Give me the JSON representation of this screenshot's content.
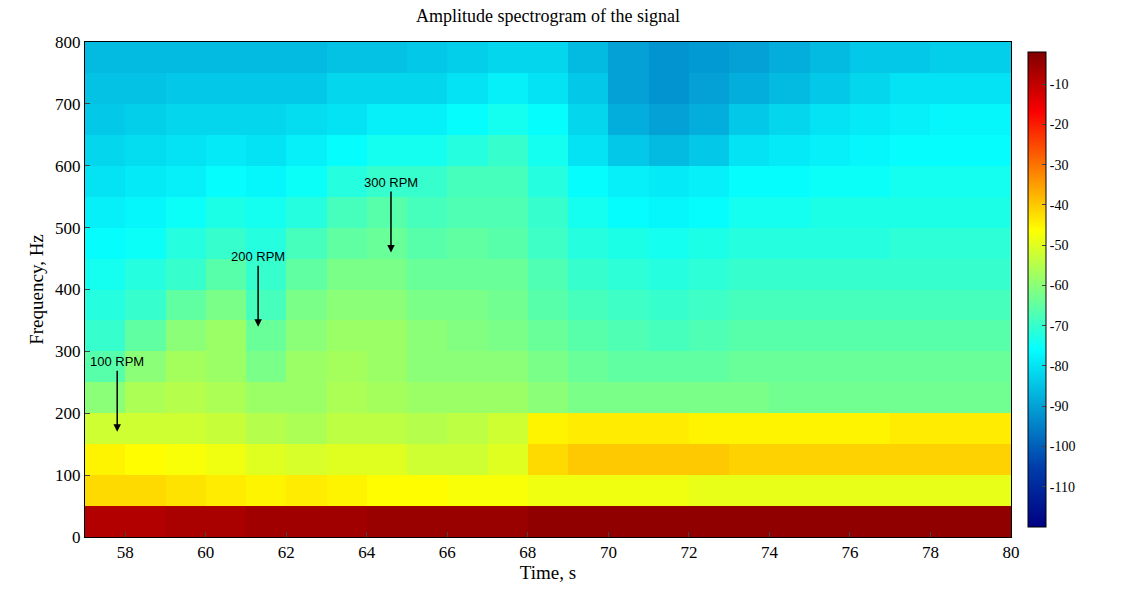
{
  "chart_data": {
    "type": "heatmap",
    "title": "Amplitude spectrogram of the signal",
    "x_label": "Time, s",
    "y_label": "Frequency, Hz",
    "color": "Jet",
    "xlim": [
      57,
      80
    ],
    "ylim": [
      0,
      800
    ],
    "xticks": [
      58,
      60,
      62,
      64,
      66,
      68,
      70,
      72,
      74,
      76,
      78,
      80
    ],
    "yticks": [
      0,
      100,
      200,
      300,
      400,
      500,
      600,
      700,
      800
    ],
    "colorbar": {
      "range": [
        -120,
        -2
      ],
      "ticks": [
        -10,
        -20,
        -30,
        -40,
        -50,
        -60,
        -70,
        -80,
        -90,
        -100,
        -110
      ]
    },
    "x": [
      57.5,
      58.5,
      59.5,
      60.5,
      61.5,
      62.5,
      63.5,
      64.5,
      65.5,
      66.5,
      67.5,
      68.5,
      69.5,
      70.5,
      71.5,
      72.5,
      73.5,
      74.5,
      75.5,
      76.5,
      77.5,
      78.5,
      79.5
    ],
    "y": [
      25,
      75,
      125,
      175,
      225,
      275,
      325,
      375,
      425,
      475,
      525,
      575,
      625,
      675,
      725,
      775
    ],
    "z": [
      [
        -8,
        -8,
        -7,
        -7,
        -6,
        -6,
        -6,
        -5,
        -5,
        -5,
        -5,
        -4,
        -4,
        -4,
        -4,
        -4,
        -4,
        -4,
        -4,
        -4,
        -4,
        -4,
        -4
      ],
      [
        -42,
        -42,
        -43,
        -44,
        -45,
        -44,
        -45,
        -46,
        -46,
        -47,
        -47,
        -48,
        -48,
        -48,
        -48,
        -49,
        -49,
        -49,
        -49,
        -49,
        -49,
        -49,
        -49
      ],
      [
        -45,
        -46,
        -47,
        -48,
        -50,
        -51,
        -50,
        -50,
        -52,
        -52,
        -50,
        -42,
        -40,
        -40,
        -40,
        -40,
        -41,
        -41,
        -41,
        -41,
        -41,
        -41,
        -41
      ],
      [
        -52,
        -52,
        -52,
        -53,
        -55,
        -56,
        -54,
        -54,
        -55,
        -54,
        -52,
        -45,
        -44,
        -44,
        -44,
        -45,
        -45,
        -45,
        -45,
        -45,
        -44,
        -44,
        -44
      ],
      [
        -60,
        -56,
        -55,
        -56,
        -58,
        -58,
        -56,
        -57,
        -58,
        -58,
        -58,
        -60,
        -62,
        -62,
        -62,
        -62,
        -62,
        -63,
        -63,
        -63,
        -63,
        -63,
        -63
      ],
      [
        -66,
        -60,
        -57,
        -58,
        -62,
        -58,
        -57,
        -58,
        -60,
        -60,
        -60,
        -62,
        -64,
        -65,
        -65,
        -65,
        -64,
        -64,
        -64,
        -64,
        -64,
        -64,
        -64
      ],
      [
        -70,
        -65,
        -60,
        -58,
        -64,
        -60,
        -58,
        -58,
        -60,
        -61,
        -62,
        -64,
        -66,
        -67,
        -68,
        -67,
        -66,
        -66,
        -66,
        -66,
        -66,
        -66,
        -66
      ],
      [
        -72,
        -70,
        -65,
        -62,
        -68,
        -62,
        -60,
        -60,
        -62,
        -62,
        -63,
        -66,
        -68,
        -69,
        -70,
        -69,
        -68,
        -68,
        -68,
        -68,
        -68,
        -68,
        -68
      ],
      [
        -74,
        -72,
        -70,
        -66,
        -70,
        -65,
        -62,
        -62,
        -64,
        -64,
        -64,
        -67,
        -70,
        -71,
        -72,
        -71,
        -70,
        -70,
        -70,
        -70,
        -70,
        -70,
        -70
      ],
      [
        -76,
        -75,
        -72,
        -70,
        -72,
        -68,
        -65,
        -64,
        -66,
        -65,
        -66,
        -69,
        -72,
        -73,
        -74,
        -73,
        -72,
        -72,
        -72,
        -72,
        -71,
        -71,
        -71
      ],
      [
        -78,
        -77,
        -75,
        -73,
        -74,
        -72,
        -68,
        -66,
        -68,
        -67,
        -67,
        -70,
        -74,
        -76,
        -77,
        -76,
        -74,
        -74,
        -73,
        -73,
        -73,
        -73,
        -73
      ],
      [
        -80,
        -79,
        -78,
        -76,
        -77,
        -75,
        -72,
        -70,
        -70,
        -68,
        -68,
        -72,
        -76,
        -78,
        -79,
        -78,
        -76,
        -76,
        -75,
        -75,
        -74,
        -74,
        -74
      ],
      [
        -82,
        -81,
        -80,
        -79,
        -80,
        -78,
        -76,
        -74,
        -74,
        -72,
        -70,
        -74,
        -80,
        -84,
        -86,
        -84,
        -80,
        -79,
        -78,
        -77,
        -76,
        -76,
        -76
      ],
      [
        -84,
        -83,
        -82,
        -82,
        -82,
        -81,
        -80,
        -78,
        -78,
        -76,
        -74,
        -76,
        -82,
        -88,
        -90,
        -88,
        -84,
        -82,
        -80,
        -79,
        -78,
        -77,
        -77
      ],
      [
        -85,
        -85,
        -84,
        -84,
        -84,
        -84,
        -82,
        -82,
        -82,
        -80,
        -78,
        -80,
        -84,
        -90,
        -92,
        -90,
        -88,
        -86,
        -84,
        -82,
        -80,
        -80,
        -80
      ],
      [
        -86,
        -86,
        -86,
        -86,
        -86,
        -86,
        -85,
        -85,
        -84,
        -83,
        -82,
        -82,
        -86,
        -90,
        -92,
        -91,
        -90,
        -88,
        -86,
        -84,
        -84,
        -83,
        -83
      ]
    ],
    "annotations": [
      {
        "text": "100 RPM",
        "x": 57.8,
        "y": 170
      },
      {
        "text": "200 RPM",
        "x": 61.3,
        "y": 340
      },
      {
        "text": "300 RPM",
        "x": 64.6,
        "y": 460
      }
    ]
  }
}
